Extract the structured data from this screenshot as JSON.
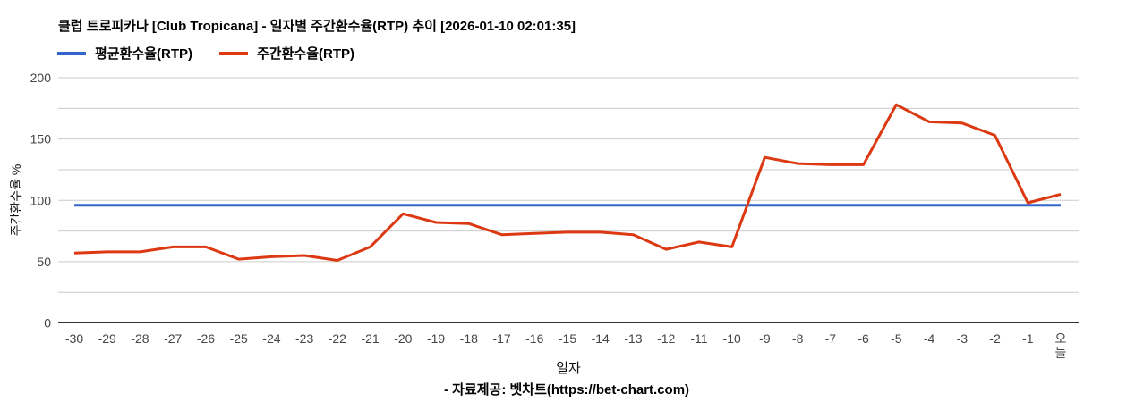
{
  "chart_data": {
    "type": "line",
    "title": "클럽 트로피카나 [Club Tropicana] - 일자별 주간환수율(RTP) 추이 [2026-01-10 02:01:35]",
    "xlabel": "일자",
    "ylabel": "주간환수율 %",
    "ylim": [
      0,
      200
    ],
    "yticks": [
      0,
      50,
      100,
      150,
      200
    ],
    "grid_step": 25,
    "grid": true,
    "legend_position": "top-left",
    "x": [
      "-30",
      "-29",
      "-28",
      "-27",
      "-26",
      "-25",
      "-24",
      "-23",
      "-22",
      "-21",
      "-20",
      "-19",
      "-18",
      "-17",
      "-16",
      "-15",
      "-14",
      "-13",
      "-12",
      "-11",
      "-10",
      "-9",
      "-8",
      "-7",
      "-6",
      "-5",
      "-4",
      "-3",
      "-2",
      "-1",
      "오\n늘"
    ],
    "series": [
      {
        "id": "average-rtp",
        "name": "평균환수율(RTP)",
        "color": "#3366cc",
        "constant": 96
      },
      {
        "id": "weekly-rtp",
        "name": "주간환수율(RTP)",
        "color": "#dc3912",
        "values": [
          57,
          58,
          58,
          62,
          62,
          52,
          54,
          55,
          51,
          62,
          89,
          82,
          81,
          72,
          73,
          74,
          74,
          72,
          60,
          66,
          62,
          135,
          130,
          129,
          129,
          178,
          164,
          163,
          153,
          98,
          105
        ]
      }
    ]
  },
  "footer": {
    "credit": "- 자료제공: 벳차트(https://bet-chart.com)"
  },
  "style": {
    "gridline_color": "#cccccc",
    "axis_color": "#333333",
    "tick_label_color": "#444444"
  }
}
